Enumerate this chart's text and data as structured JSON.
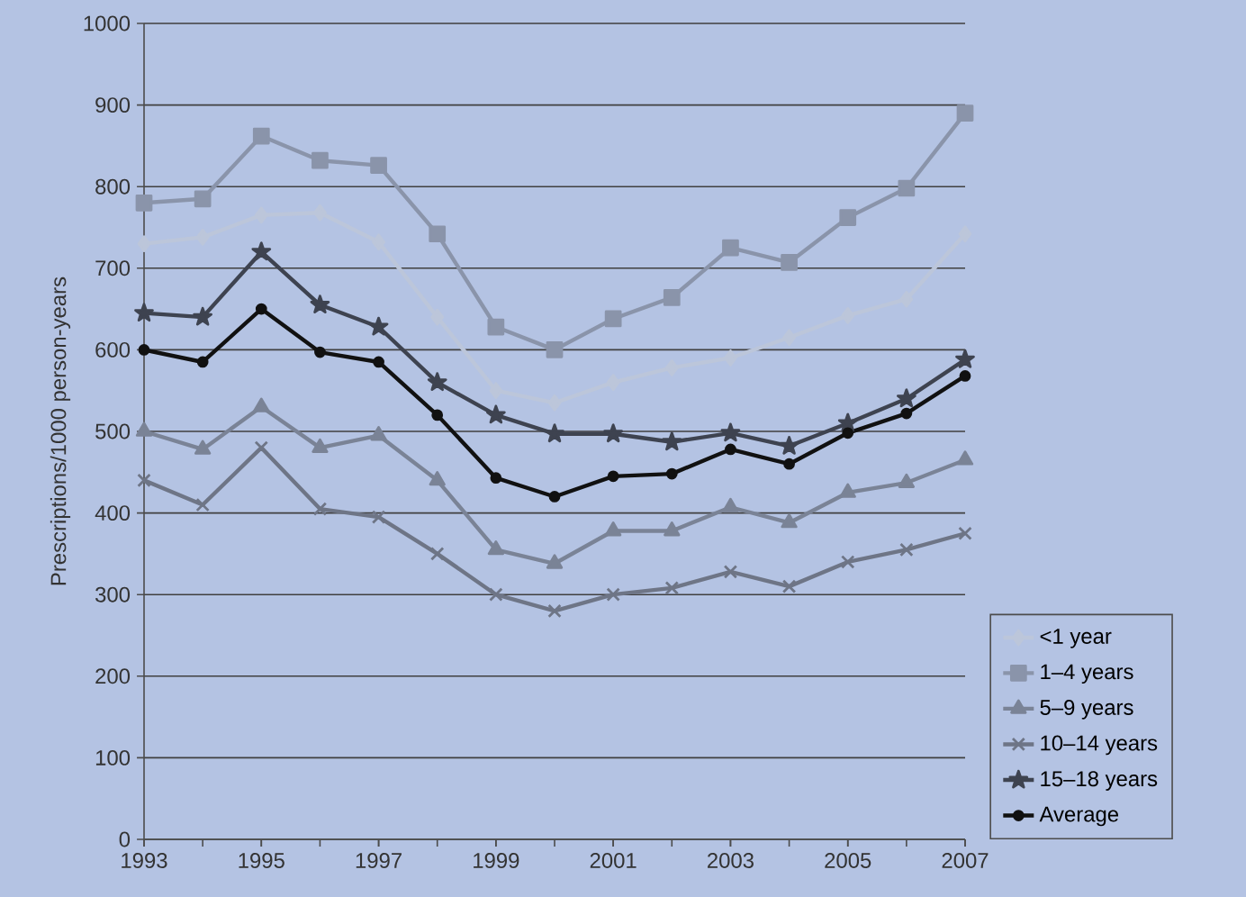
{
  "chart_data": {
    "type": "line",
    "ylabel": "Prescriptions/1000 person-years",
    "x": [
      1993,
      1994,
      1995,
      1996,
      1997,
      1998,
      1999,
      2000,
      2001,
      2002,
      2003,
      2004,
      2005,
      2006,
      2007
    ],
    "xlim": [
      1993,
      2007
    ],
    "xticks": [
      1993,
      1995,
      1997,
      1999,
      2001,
      2003,
      2005,
      2007
    ],
    "ylim": [
      0,
      1000
    ],
    "yticks": [
      0,
      100,
      200,
      300,
      400,
      500,
      600,
      700,
      800,
      900,
      1000
    ],
    "grid": "y",
    "legend": "right",
    "series": [
      {
        "name": "<1 year",
        "color": "#bcc6da",
        "marker": "diamond",
        "values": [
          730,
          738,
          765,
          768,
          732,
          640,
          550,
          535,
          560,
          578,
          590,
          615,
          642,
          662,
          742
        ]
      },
      {
        "name": "1–4 years",
        "color": "#8a94aa",
        "marker": "square",
        "values": [
          780,
          785,
          862,
          832,
          826,
          742,
          628,
          600,
          638,
          664,
          725,
          707,
          762,
          798,
          890
        ]
      },
      {
        "name": "5–9 years",
        "color": "#7a8396",
        "marker": "triangle",
        "values": [
          500,
          478,
          530,
          480,
          495,
          440,
          355,
          338,
          378,
          378,
          407,
          388,
          425,
          437,
          465
        ]
      },
      {
        "name": "10–14 years",
        "color": "#6e7586",
        "marker": "cross",
        "values": [
          440,
          410,
          480,
          405,
          395,
          350,
          300,
          280,
          300,
          308,
          328,
          310,
          340,
          355,
          375
        ]
      },
      {
        "name": "15–18 years",
        "color": "#3e4350",
        "marker": "star",
        "values": [
          645,
          640,
          720,
          655,
          628,
          560,
          520,
          497,
          497,
          487,
          498,
          482,
          510,
          540,
          588
        ]
      },
      {
        "name": "Average",
        "color": "#111111",
        "marker": "circle",
        "values": [
          600,
          585,
          650,
          597,
          585,
          520,
          443,
          420,
          445,
          448,
          478,
          460,
          498,
          522,
          568
        ]
      }
    ]
  }
}
